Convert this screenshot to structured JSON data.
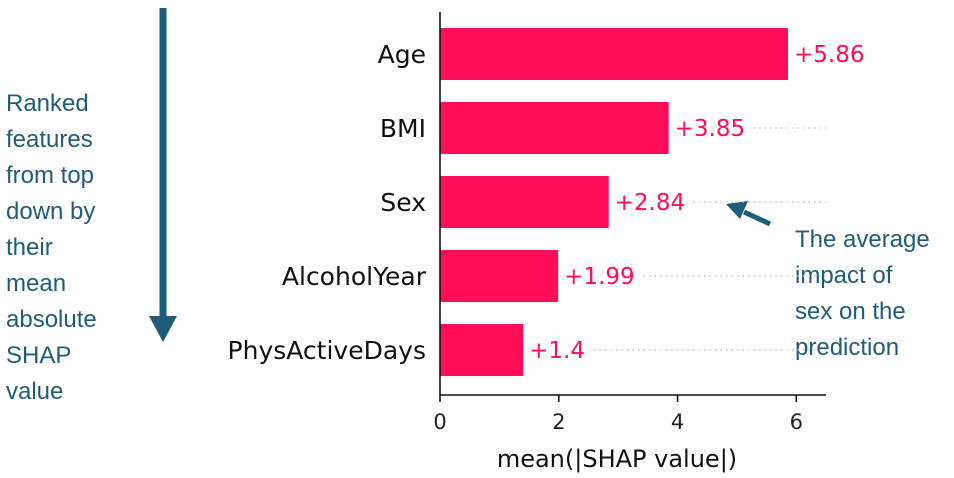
{
  "colors": {
    "bar": "#ff0d57",
    "annotation": "#1e5c7a",
    "axis": "#111111",
    "dotted": "#c8c8c8"
  },
  "annotations": {
    "left_lines": [
      "Ranked",
      "features",
      "from top",
      "down by",
      "their",
      "mean",
      "absolute",
      "SHAP",
      "value"
    ],
    "right_lines": [
      "The average",
      "impact of",
      "sex on the",
      "prediction"
    ]
  },
  "chart_data": {
    "type": "bar",
    "orientation": "horizontal",
    "categories": [
      "Age",
      "BMI",
      "Sex",
      "AlcoholYear",
      "PhysActiveDays"
    ],
    "values": [
      5.86,
      3.85,
      2.84,
      1.99,
      1.4
    ],
    "value_labels": [
      "+5.86",
      "+3.85",
      "+2.84",
      "+1.99",
      "+1.4"
    ],
    "xlabel": "mean(|SHAP value|)",
    "ylabel": "",
    "xlim": [
      0,
      6.5
    ],
    "xticks": [
      0,
      2,
      4,
      6
    ],
    "grid": false
  }
}
